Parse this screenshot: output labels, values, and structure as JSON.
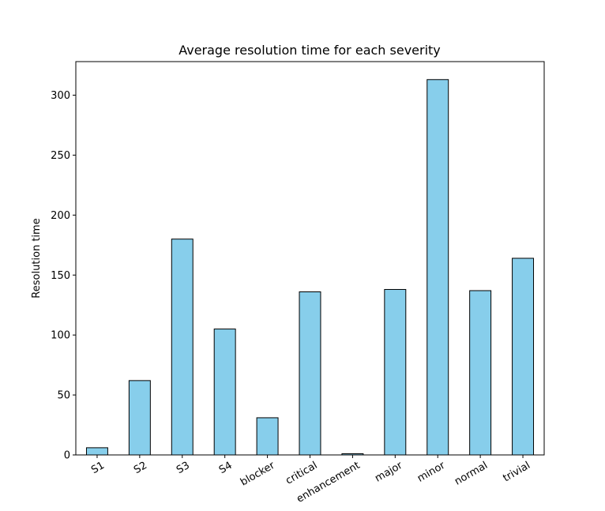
{
  "chart_data": {
    "type": "bar",
    "title": "Average resolution time for each severity",
    "xlabel": "",
    "ylabel": "Resolution time",
    "categories": [
      "S1",
      "S2",
      "S3",
      "S4",
      "blocker",
      "critical",
      "enhancement",
      "major",
      "minor",
      "normal",
      "trivial"
    ],
    "values": [
      6,
      62,
      180,
      105,
      31,
      136,
      1,
      138,
      313,
      137,
      164
    ],
    "ylim": [
      0,
      328
    ],
    "yticks": [
      0,
      50,
      100,
      150,
      200,
      250,
      300
    ],
    "grid": false,
    "legend": "none",
    "bar_color": "#87ceeb",
    "edge_color": "#000000"
  }
}
